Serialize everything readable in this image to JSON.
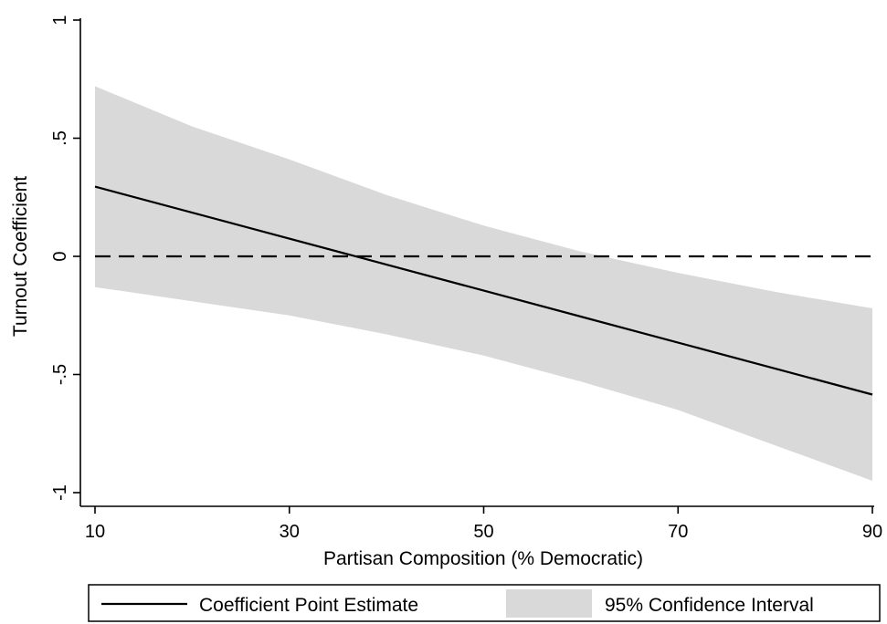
{
  "chart_data": {
    "type": "line",
    "title": "",
    "xlabel": "Partisan Composition (% Democratic)",
    "ylabel": "Turnout Coefficient",
    "xlim": [
      10,
      90
    ],
    "ylim": [
      -1,
      1
    ],
    "xticks": [
      10,
      30,
      50,
      70,
      90
    ],
    "xtick_labels": [
      "10",
      "30",
      "50",
      "70",
      "90"
    ],
    "yticks": [
      -1,
      -0.5,
      0,
      0.5,
      1
    ],
    "ytick_labels": [
      "-1",
      "-.5",
      "0",
      ".5",
      "1"
    ],
    "grid": false,
    "legend_position": "bottom",
    "series": [
      {
        "name": "Coefficient Point Estimate",
        "kind": "line",
        "color": "#000000",
        "x": [
          10,
          90
        ],
        "y": [
          0.295,
          -0.585
        ]
      },
      {
        "name": "95% Confidence Interval",
        "kind": "band",
        "color": "#d9d9d9",
        "x": [
          10,
          20,
          30,
          40,
          50,
          60,
          70,
          80,
          90
        ],
        "lower": [
          -0.13,
          -0.19,
          -0.25,
          -0.33,
          -0.42,
          -0.53,
          -0.65,
          -0.8,
          -0.95
        ],
        "upper": [
          0.72,
          0.55,
          0.41,
          0.26,
          0.13,
          0.02,
          -0.07,
          -0.15,
          -0.22
        ]
      }
    ],
    "reference_lines": [
      {
        "axis": "y",
        "value": 0,
        "style": "dashed",
        "color": "#000000"
      }
    ]
  }
}
